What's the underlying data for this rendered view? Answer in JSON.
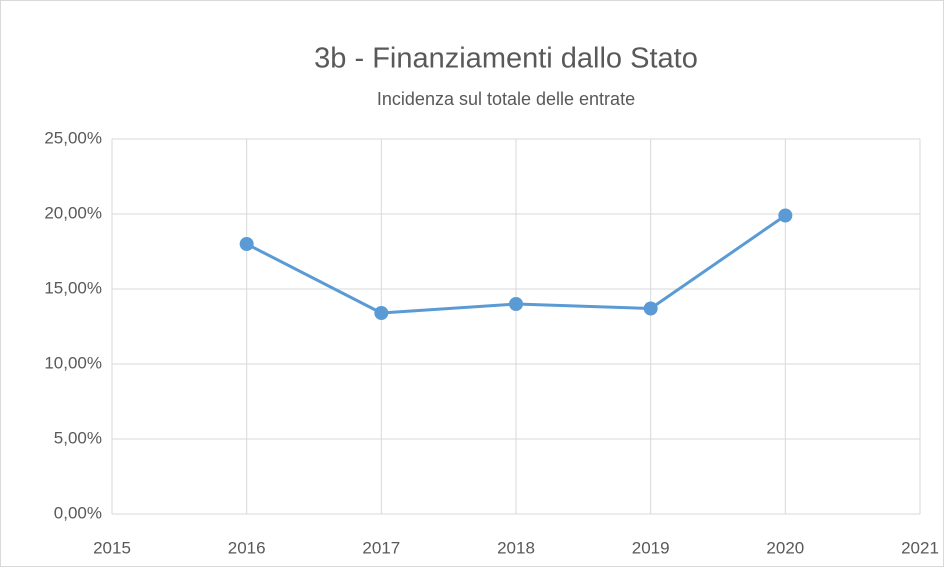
{
  "chart_data": {
    "type": "line",
    "title": "3b - Finanziamenti dallo Stato",
    "subtitle": "Incidenza sul totale delle entrate",
    "x": [
      2016,
      2017,
      2018,
      2019,
      2020
    ],
    "values": [
      18.0,
      13.4,
      14.0,
      13.7,
      19.9
    ],
    "color": "#5b9bd5",
    "xlim": [
      2015,
      2021
    ],
    "xticks": [
      2015,
      2016,
      2017,
      2018,
      2019,
      2020,
      2021
    ],
    "ylim": [
      0,
      25
    ],
    "yticks": [
      {
        "value": 0,
        "label": "0,00%"
      },
      {
        "value": 5,
        "label": "5,00%"
      },
      {
        "value": 10,
        "label": "10,00%"
      },
      {
        "value": 15,
        "label": "15,00%"
      },
      {
        "value": 20,
        "label": "20,00%"
      },
      {
        "value": 25,
        "label": "25,00%"
      }
    ],
    "grid": true
  }
}
